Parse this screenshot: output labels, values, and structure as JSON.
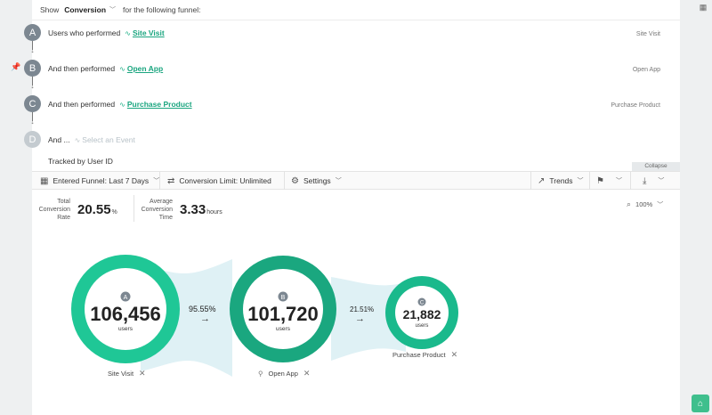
{
  "header": {
    "show_label": "Show",
    "mode": "Conversion",
    "suffix": "for the following funnel:"
  },
  "steps": [
    {
      "badge": "A",
      "prefix": "Users who performed",
      "event": "Site Visit",
      "right_label": "Site Visit"
    },
    {
      "badge": "B",
      "prefix": "And then performed",
      "event": "Open App",
      "right_label": "Open App"
    },
    {
      "badge": "C",
      "prefix": "And then performed",
      "event": "Purchase Product",
      "right_label": "Purchase Product"
    },
    {
      "badge": "D",
      "prefix": "And ...",
      "event": "Select an Event",
      "right_label": ""
    }
  ],
  "tracked_by": "Tracked by User ID",
  "collapse_label": "Collapse",
  "toolbar": {
    "entered_funnel": "Entered Funnel: Last 7 Days",
    "conversion_limit": "Conversion Limit: Unlimited",
    "settings": "Settings",
    "trends": "Trends"
  },
  "metrics": {
    "total_conversion_label_1": "Total",
    "total_conversion_label_2": "Conversion",
    "total_conversion_label_3": "Rate",
    "total_conversion_value": "20.55",
    "total_conversion_unit": "%",
    "avg_time_label_1": "Average",
    "avg_time_label_2": "Conversion",
    "avg_time_label_3": "Time",
    "avg_time_value": "3.33",
    "avg_time_unit": "hours"
  },
  "zoom": "100%",
  "funnel": {
    "nodes": [
      {
        "badge": "A",
        "value": "106,456",
        "unit": "users",
        "label": "Site Visit"
      },
      {
        "badge": "B",
        "value": "101,720",
        "unit": "users",
        "label": "Open App"
      },
      {
        "badge": "C",
        "value": "21,882",
        "unit": "users",
        "label": "Purchase Product"
      }
    ],
    "conversions": [
      "95.55%",
      "21.51%"
    ]
  },
  "colors": {
    "accent": "#1aa57f",
    "node_a": "#1fc796",
    "node_b": "#1aa77f",
    "node_c": "#1ab98c",
    "flow": "#dff1f5"
  }
}
